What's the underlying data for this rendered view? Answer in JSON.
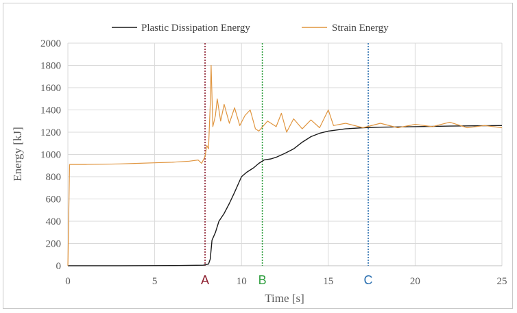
{
  "chart_data": {
    "type": "line",
    "title": "",
    "xlabel": "Time [s]",
    "ylabel": "Energy [kJ]",
    "xlim": [
      0,
      25
    ],
    "ylim": [
      0,
      2000
    ],
    "x_ticks": [
      0,
      5,
      10,
      15,
      20,
      25
    ],
    "y_ticks": [
      0,
      200,
      400,
      600,
      800,
      1000,
      1200,
      1400,
      1600,
      1800,
      2000
    ],
    "grid": true,
    "legend_position": "top",
    "series": [
      {
        "name": "Plastic Dissipation Energy",
        "color": "#1a1a1a",
        "points": [
          [
            0,
            0
          ],
          [
            3,
            0
          ],
          [
            6,
            2
          ],
          [
            7.8,
            5
          ],
          [
            8.1,
            15
          ],
          [
            8.2,
            60
          ],
          [
            8.3,
            230
          ],
          [
            8.5,
            300
          ],
          [
            8.7,
            400
          ],
          [
            9,
            470
          ],
          [
            9.3,
            560
          ],
          [
            9.6,
            660
          ],
          [
            10,
            800
          ],
          [
            10.3,
            840
          ],
          [
            10.7,
            880
          ],
          [
            11,
            920
          ],
          [
            11.3,
            950
          ],
          [
            11.7,
            960
          ],
          [
            12,
            975
          ],
          [
            12.5,
            1010
          ],
          [
            13,
            1050
          ],
          [
            13.5,
            1110
          ],
          [
            14,
            1160
          ],
          [
            14.5,
            1190
          ],
          [
            15,
            1210
          ],
          [
            16,
            1230
          ],
          [
            17,
            1240
          ],
          [
            18,
            1245
          ],
          [
            20,
            1250
          ],
          [
            22,
            1255
          ],
          [
            24,
            1258
          ],
          [
            25,
            1260
          ]
        ]
      },
      {
        "name": "Strain Energy",
        "color": "#e0953f",
        "points": [
          [
            0,
            0
          ],
          [
            0.1,
            910
          ],
          [
            1,
            910
          ],
          [
            2,
            912
          ],
          [
            3,
            915
          ],
          [
            4,
            920
          ],
          [
            5,
            925
          ],
          [
            6,
            930
          ],
          [
            7,
            940
          ],
          [
            7.5,
            950
          ],
          [
            7.7,
            920
          ],
          [
            7.9,
            980
          ],
          [
            8.0,
            1080
          ],
          [
            8.1,
            1050
          ],
          [
            8.2,
            1450
          ],
          [
            8.25,
            1800
          ],
          [
            8.35,
            1250
          ],
          [
            8.5,
            1350
          ],
          [
            8.6,
            1500
          ],
          [
            8.8,
            1300
          ],
          [
            9,
            1450
          ],
          [
            9.3,
            1280
          ],
          [
            9.6,
            1420
          ],
          [
            9.9,
            1260
          ],
          [
            10.2,
            1350
          ],
          [
            10.5,
            1400
          ],
          [
            10.8,
            1230
          ],
          [
            11,
            1210
          ],
          [
            11.5,
            1300
          ],
          [
            12,
            1250
          ],
          [
            12.3,
            1370
          ],
          [
            12.6,
            1200
          ],
          [
            13,
            1320
          ],
          [
            13.5,
            1230
          ],
          [
            14,
            1310
          ],
          [
            14.5,
            1240
          ],
          [
            15,
            1400
          ],
          [
            15.3,
            1260
          ],
          [
            16,
            1280
          ],
          [
            17,
            1240
          ],
          [
            18,
            1280
          ],
          [
            19,
            1240
          ],
          [
            20,
            1270
          ],
          [
            21,
            1250
          ],
          [
            22,
            1290
          ],
          [
            23,
            1240
          ],
          [
            24,
            1260
          ],
          [
            25,
            1240
          ]
        ]
      }
    ],
    "vertical_markers": [
      {
        "label": "A",
        "x": 7.9,
        "color": "#8b1a2b"
      },
      {
        "label": "B",
        "x": 11.2,
        "color": "#2e9e3e"
      },
      {
        "label": "C",
        "x": 17.3,
        "color": "#2a6fb0"
      }
    ]
  }
}
